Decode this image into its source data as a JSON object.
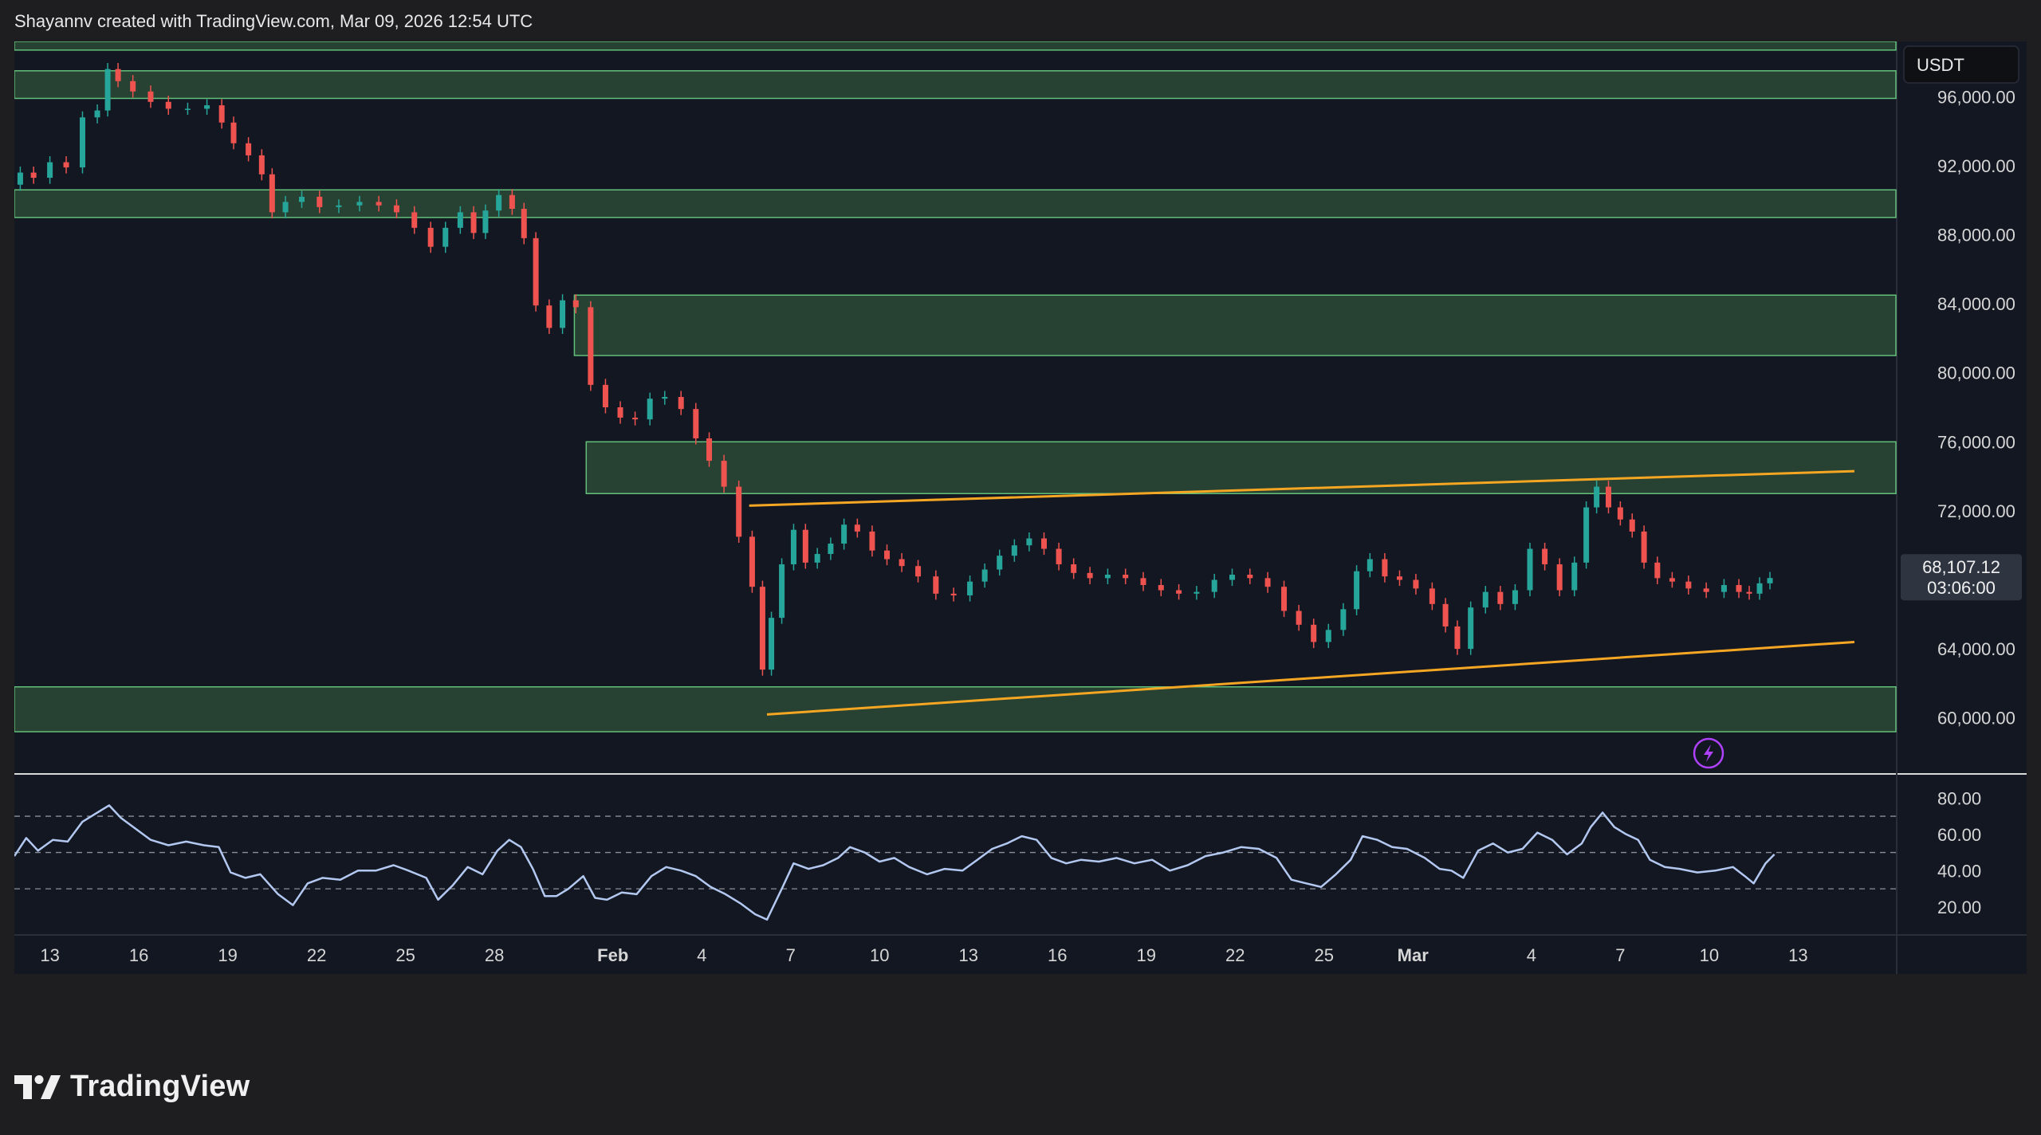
{
  "header": {
    "credit": "Shayannv created with TradingView.com, Mar 09, 2026 12:54 UTC"
  },
  "colors": {
    "pane_bg": "#131722",
    "page_bg": "#1e1e20",
    "zone_fill": "#2c4a35",
    "zone_stroke": "#63c07a",
    "up": "#26a69a",
    "down": "#ef5350",
    "trendline": "#f5a623",
    "rsi_line": "#b3c8f0",
    "grid_text": "#d6d6d6",
    "bolt": "#b042ff"
  },
  "chart_data": {
    "type": "line",
    "title": "",
    "price_axis": {
      "currency": "USDT",
      "ylim": [
        56800,
        99200
      ],
      "ticks": [
        "96,000.00",
        "92,000.00",
        "88,000.00",
        "84,000.00",
        "80,000.00",
        "76,000.00",
        "72,000.00",
        "64,000.00",
        "60,000.00"
      ],
      "tick_values": [
        96000,
        92000,
        88000,
        84000,
        80000,
        76000,
        72000,
        64000,
        60000
      ]
    },
    "last_price": {
      "value_label": "68,107.12",
      "countdown": "03:06:00",
      "value": 68107.12
    },
    "x_axis": {
      "tick_labels": [
        "13",
        "16",
        "19",
        "22",
        "25",
        "28",
        "Feb",
        "4",
        "7",
        "10",
        "13",
        "16",
        "19",
        "22",
        "25",
        "Mar",
        "4",
        "7",
        "10",
        "13"
      ],
      "tick_days": [
        -19,
        -16,
        -13,
        -10,
        -7,
        -4,
        0,
        3,
        6,
        9,
        12,
        15,
        18,
        21,
        24,
        27,
        31,
        34,
        37,
        40
      ],
      "xlim_days": [
        -20.2,
        43.3
      ],
      "note_units": "day offset from Feb 1"
    },
    "price_series": {
      "name": "",
      "points": [
        [
          -20.2,
          90900
        ],
        [
          -19.8,
          91600
        ],
        [
          -19.3,
          91300
        ],
        [
          -18.7,
          92200
        ],
        [
          -18.2,
          91900
        ],
        [
          -17.6,
          94800
        ],
        [
          -17.2,
          95200
        ],
        [
          -16.9,
          97600
        ],
        [
          -16.5,
          96900
        ],
        [
          -15.9,
          96300
        ],
        [
          -15.3,
          95700
        ],
        [
          -14.7,
          95300
        ],
        [
          -14.0,
          95300
        ],
        [
          -13.4,
          95500
        ],
        [
          -13.0,
          94500
        ],
        [
          -12.6,
          93300
        ],
        [
          -12.0,
          92600
        ],
        [
          -11.7,
          91500
        ],
        [
          -11.3,
          89300
        ],
        [
          -10.8,
          89900
        ],
        [
          -10.2,
          90200
        ],
        [
          -9.6,
          89600
        ],
        [
          -8.9,
          89700
        ],
        [
          -8.2,
          89900
        ],
        [
          -7.6,
          89700
        ],
        [
          -7.0,
          89300
        ],
        [
          -6.4,
          88400
        ],
        [
          -5.9,
          87300
        ],
        [
          -5.4,
          88400
        ],
        [
          -4.9,
          89300
        ],
        [
          -4.5,
          88100
        ],
        [
          -4.1,
          89400
        ],
        [
          -3.6,
          90300
        ],
        [
          -3.2,
          89500
        ],
        [
          -2.8,
          87800
        ],
        [
          -2.4,
          83900
        ],
        [
          -1.9,
          82600
        ],
        [
          -1.5,
          84200
        ],
        [
          -1.0,
          83800
        ],
        [
          -0.5,
          79300
        ],
        [
          0.0,
          78000
        ],
        [
          0.5,
          77400
        ],
        [
          1.0,
          77300
        ],
        [
          1.5,
          78500
        ],
        [
          2.0,
          78600
        ],
        [
          2.6,
          77900
        ],
        [
          3.0,
          76200
        ],
        [
          3.5,
          74900
        ],
        [
          4.0,
          73400
        ],
        [
          4.5,
          70500
        ],
        [
          4.9,
          67600
        ],
        [
          5.2,
          62800
        ],
        [
          5.5,
          65800
        ],
        [
          5.9,
          68900
        ],
        [
          6.3,
          70900
        ],
        [
          6.7,
          69000
        ],
        [
          7.1,
          69500
        ],
        [
          7.6,
          70100
        ],
        [
          8.0,
          71200
        ],
        [
          8.5,
          70800
        ],
        [
          9.0,
          69700
        ],
        [
          9.5,
          69200
        ],
        [
          10.0,
          68800
        ],
        [
          10.6,
          68200
        ],
        [
          11.2,
          67200
        ],
        [
          11.8,
          67100
        ],
        [
          12.3,
          67900
        ],
        [
          12.8,
          68600
        ],
        [
          13.3,
          69400
        ],
        [
          13.8,
          70000
        ],
        [
          14.3,
          70400
        ],
        [
          14.8,
          69800
        ],
        [
          15.3,
          68900
        ],
        [
          15.8,
          68400
        ],
        [
          16.4,
          68100
        ],
        [
          17.0,
          68300
        ],
        [
          17.6,
          68100
        ],
        [
          18.2,
          67700
        ],
        [
          18.8,
          67400
        ],
        [
          19.4,
          67200
        ],
        [
          20.0,
          67300
        ],
        [
          20.6,
          68000
        ],
        [
          21.2,
          68300
        ],
        [
          21.8,
          68100
        ],
        [
          22.4,
          67600
        ],
        [
          22.9,
          66200
        ],
        [
          23.4,
          65400
        ],
        [
          23.9,
          64400
        ],
        [
          24.4,
          65100
        ],
        [
          24.9,
          66300
        ],
        [
          25.3,
          68500
        ],
        [
          25.8,
          69200
        ],
        [
          26.3,
          68200
        ],
        [
          26.8,
          68000
        ],
        [
          27.4,
          67500
        ],
        [
          27.9,
          66600
        ],
        [
          28.3,
          65300
        ],
        [
          28.7,
          64000
        ],
        [
          29.2,
          66400
        ],
        [
          29.7,
          67300
        ],
        [
          30.2,
          66600
        ],
        [
          30.7,
          67400
        ],
        [
          31.2,
          69800
        ],
        [
          31.7,
          68900
        ],
        [
          32.2,
          67400
        ],
        [
          32.7,
          69000
        ],
        [
          33.0,
          72200
        ],
        [
          33.4,
          73400
        ],
        [
          33.8,
          72200
        ],
        [
          34.2,
          71500
        ],
        [
          34.6,
          70800
        ],
        [
          35.0,
          69000
        ],
        [
          35.5,
          68100
        ],
        [
          36.0,
          67900
        ],
        [
          36.6,
          67500
        ],
        [
          37.2,
          67300
        ],
        [
          37.8,
          67700
        ],
        [
          38.2,
          67300
        ],
        [
          38.5,
          67200
        ],
        [
          38.9,
          67800
        ],
        [
          39.2,
          68107
        ]
      ]
    },
    "zones": [
      {
        "from": 98700,
        "to": 99500
      },
      {
        "from": 95900,
        "to": 97500
      },
      {
        "from": 89000,
        "to": 90600
      },
      {
        "from": 81000,
        "to": 84500
      },
      {
        "from": 73000,
        "to": 76000
      },
      {
        "from": 59200,
        "to": 61800
      }
    ],
    "trendlines": [
      {
        "from": [
          4.6,
          72300
        ],
        "to": [
          41.9,
          74300
        ]
      },
      {
        "from": [
          5.2,
          60200
        ],
        "to": [
          41.9,
          64400
        ]
      }
    ],
    "rsi": {
      "name": "",
      "ylim": [
        5,
        92
      ],
      "ticks": [
        "80.00",
        "60.00",
        "40.00",
        "20.00"
      ],
      "tick_values": [
        80,
        60,
        40,
        20
      ],
      "levels": [
        70,
        50,
        30
      ],
      "points": [
        [
          -20.2,
          48
        ],
        [
          -19.8,
          58
        ],
        [
          -19.4,
          51
        ],
        [
          -18.9,
          57
        ],
        [
          -18.4,
          56
        ],
        [
          -17.9,
          67
        ],
        [
          -17.5,
          71
        ],
        [
          -17.0,
          76
        ],
        [
          -16.6,
          69
        ],
        [
          -16.1,
          63
        ],
        [
          -15.6,
          57
        ],
        [
          -15.0,
          54
        ],
        [
          -14.4,
          56
        ],
        [
          -13.8,
          54
        ],
        [
          -13.3,
          53
        ],
        [
          -12.9,
          39
        ],
        [
          -12.4,
          36
        ],
        [
          -11.9,
          38
        ],
        [
          -11.3,
          27
        ],
        [
          -10.8,
          21
        ],
        [
          -10.3,
          33
        ],
        [
          -9.8,
          36
        ],
        [
          -9.2,
          35
        ],
        [
          -8.6,
          40
        ],
        [
          -8.0,
          40
        ],
        [
          -7.4,
          43
        ],
        [
          -6.9,
          40
        ],
        [
          -6.3,
          36
        ],
        [
          -5.9,
          24
        ],
        [
          -5.4,
          32
        ],
        [
          -4.9,
          42
        ],
        [
          -4.4,
          38
        ],
        [
          -3.9,
          51
        ],
        [
          -3.5,
          57
        ],
        [
          -3.1,
          53
        ],
        [
          -2.7,
          41
        ],
        [
          -2.3,
          26
        ],
        [
          -1.9,
          26
        ],
        [
          -1.5,
          30
        ],
        [
          -1.0,
          37
        ],
        [
          -0.6,
          25
        ],
        [
          -0.2,
          24
        ],
        [
          0.3,
          28
        ],
        [
          0.8,
          27
        ],
        [
          1.3,
          37
        ],
        [
          1.8,
          42
        ],
        [
          2.3,
          40
        ],
        [
          2.8,
          37
        ],
        [
          3.3,
          31
        ],
        [
          3.8,
          27
        ],
        [
          4.3,
          22
        ],
        [
          4.8,
          16
        ],
        [
          5.2,
          13
        ],
        [
          5.7,
          30
        ],
        [
          6.1,
          44
        ],
        [
          6.6,
          41
        ],
        [
          7.1,
          43
        ],
        [
          7.6,
          47
        ],
        [
          8.0,
          53
        ],
        [
          8.5,
          50
        ],
        [
          9.0,
          45
        ],
        [
          9.5,
          47
        ],
        [
          10.0,
          42
        ],
        [
          10.6,
          38
        ],
        [
          11.2,
          41
        ],
        [
          11.8,
          40
        ],
        [
          12.3,
          46
        ],
        [
          12.8,
          52
        ],
        [
          13.3,
          55
        ],
        [
          13.8,
          59
        ],
        [
          14.3,
          57
        ],
        [
          14.8,
          47
        ],
        [
          15.3,
          44
        ],
        [
          15.8,
          46
        ],
        [
          16.4,
          45
        ],
        [
          17.0,
          47
        ],
        [
          17.6,
          44
        ],
        [
          18.2,
          46
        ],
        [
          18.8,
          40
        ],
        [
          19.4,
          43
        ],
        [
          20.0,
          48
        ],
        [
          20.6,
          50
        ],
        [
          21.2,
          53
        ],
        [
          21.8,
          52
        ],
        [
          22.4,
          47
        ],
        [
          22.9,
          35
        ],
        [
          23.4,
          33
        ],
        [
          23.9,
          31
        ],
        [
          24.4,
          38
        ],
        [
          24.9,
          46
        ],
        [
          25.3,
          59
        ],
        [
          25.8,
          57
        ],
        [
          26.3,
          53
        ],
        [
          26.8,
          52
        ],
        [
          27.4,
          47
        ],
        [
          27.9,
          41
        ],
        [
          28.3,
          40
        ],
        [
          28.7,
          36
        ],
        [
          29.2,
          51
        ],
        [
          29.7,
          55
        ],
        [
          30.2,
          50
        ],
        [
          30.7,
          52
        ],
        [
          31.2,
          61
        ],
        [
          31.7,
          57
        ],
        [
          32.2,
          49
        ],
        [
          32.7,
          55
        ],
        [
          33.0,
          64
        ],
        [
          33.4,
          72
        ],
        [
          33.8,
          64
        ],
        [
          34.2,
          60
        ],
        [
          34.6,
          57
        ],
        [
          35.0,
          46
        ],
        [
          35.5,
          42
        ],
        [
          36.0,
          41
        ],
        [
          36.6,
          39
        ],
        [
          37.2,
          40
        ],
        [
          37.8,
          42
        ],
        [
          38.2,
          37
        ],
        [
          38.5,
          33
        ],
        [
          38.9,
          44
        ],
        [
          39.2,
          49
        ]
      ]
    },
    "grid": false,
    "legend": "none"
  },
  "brand": {
    "name": "TradingView"
  }
}
